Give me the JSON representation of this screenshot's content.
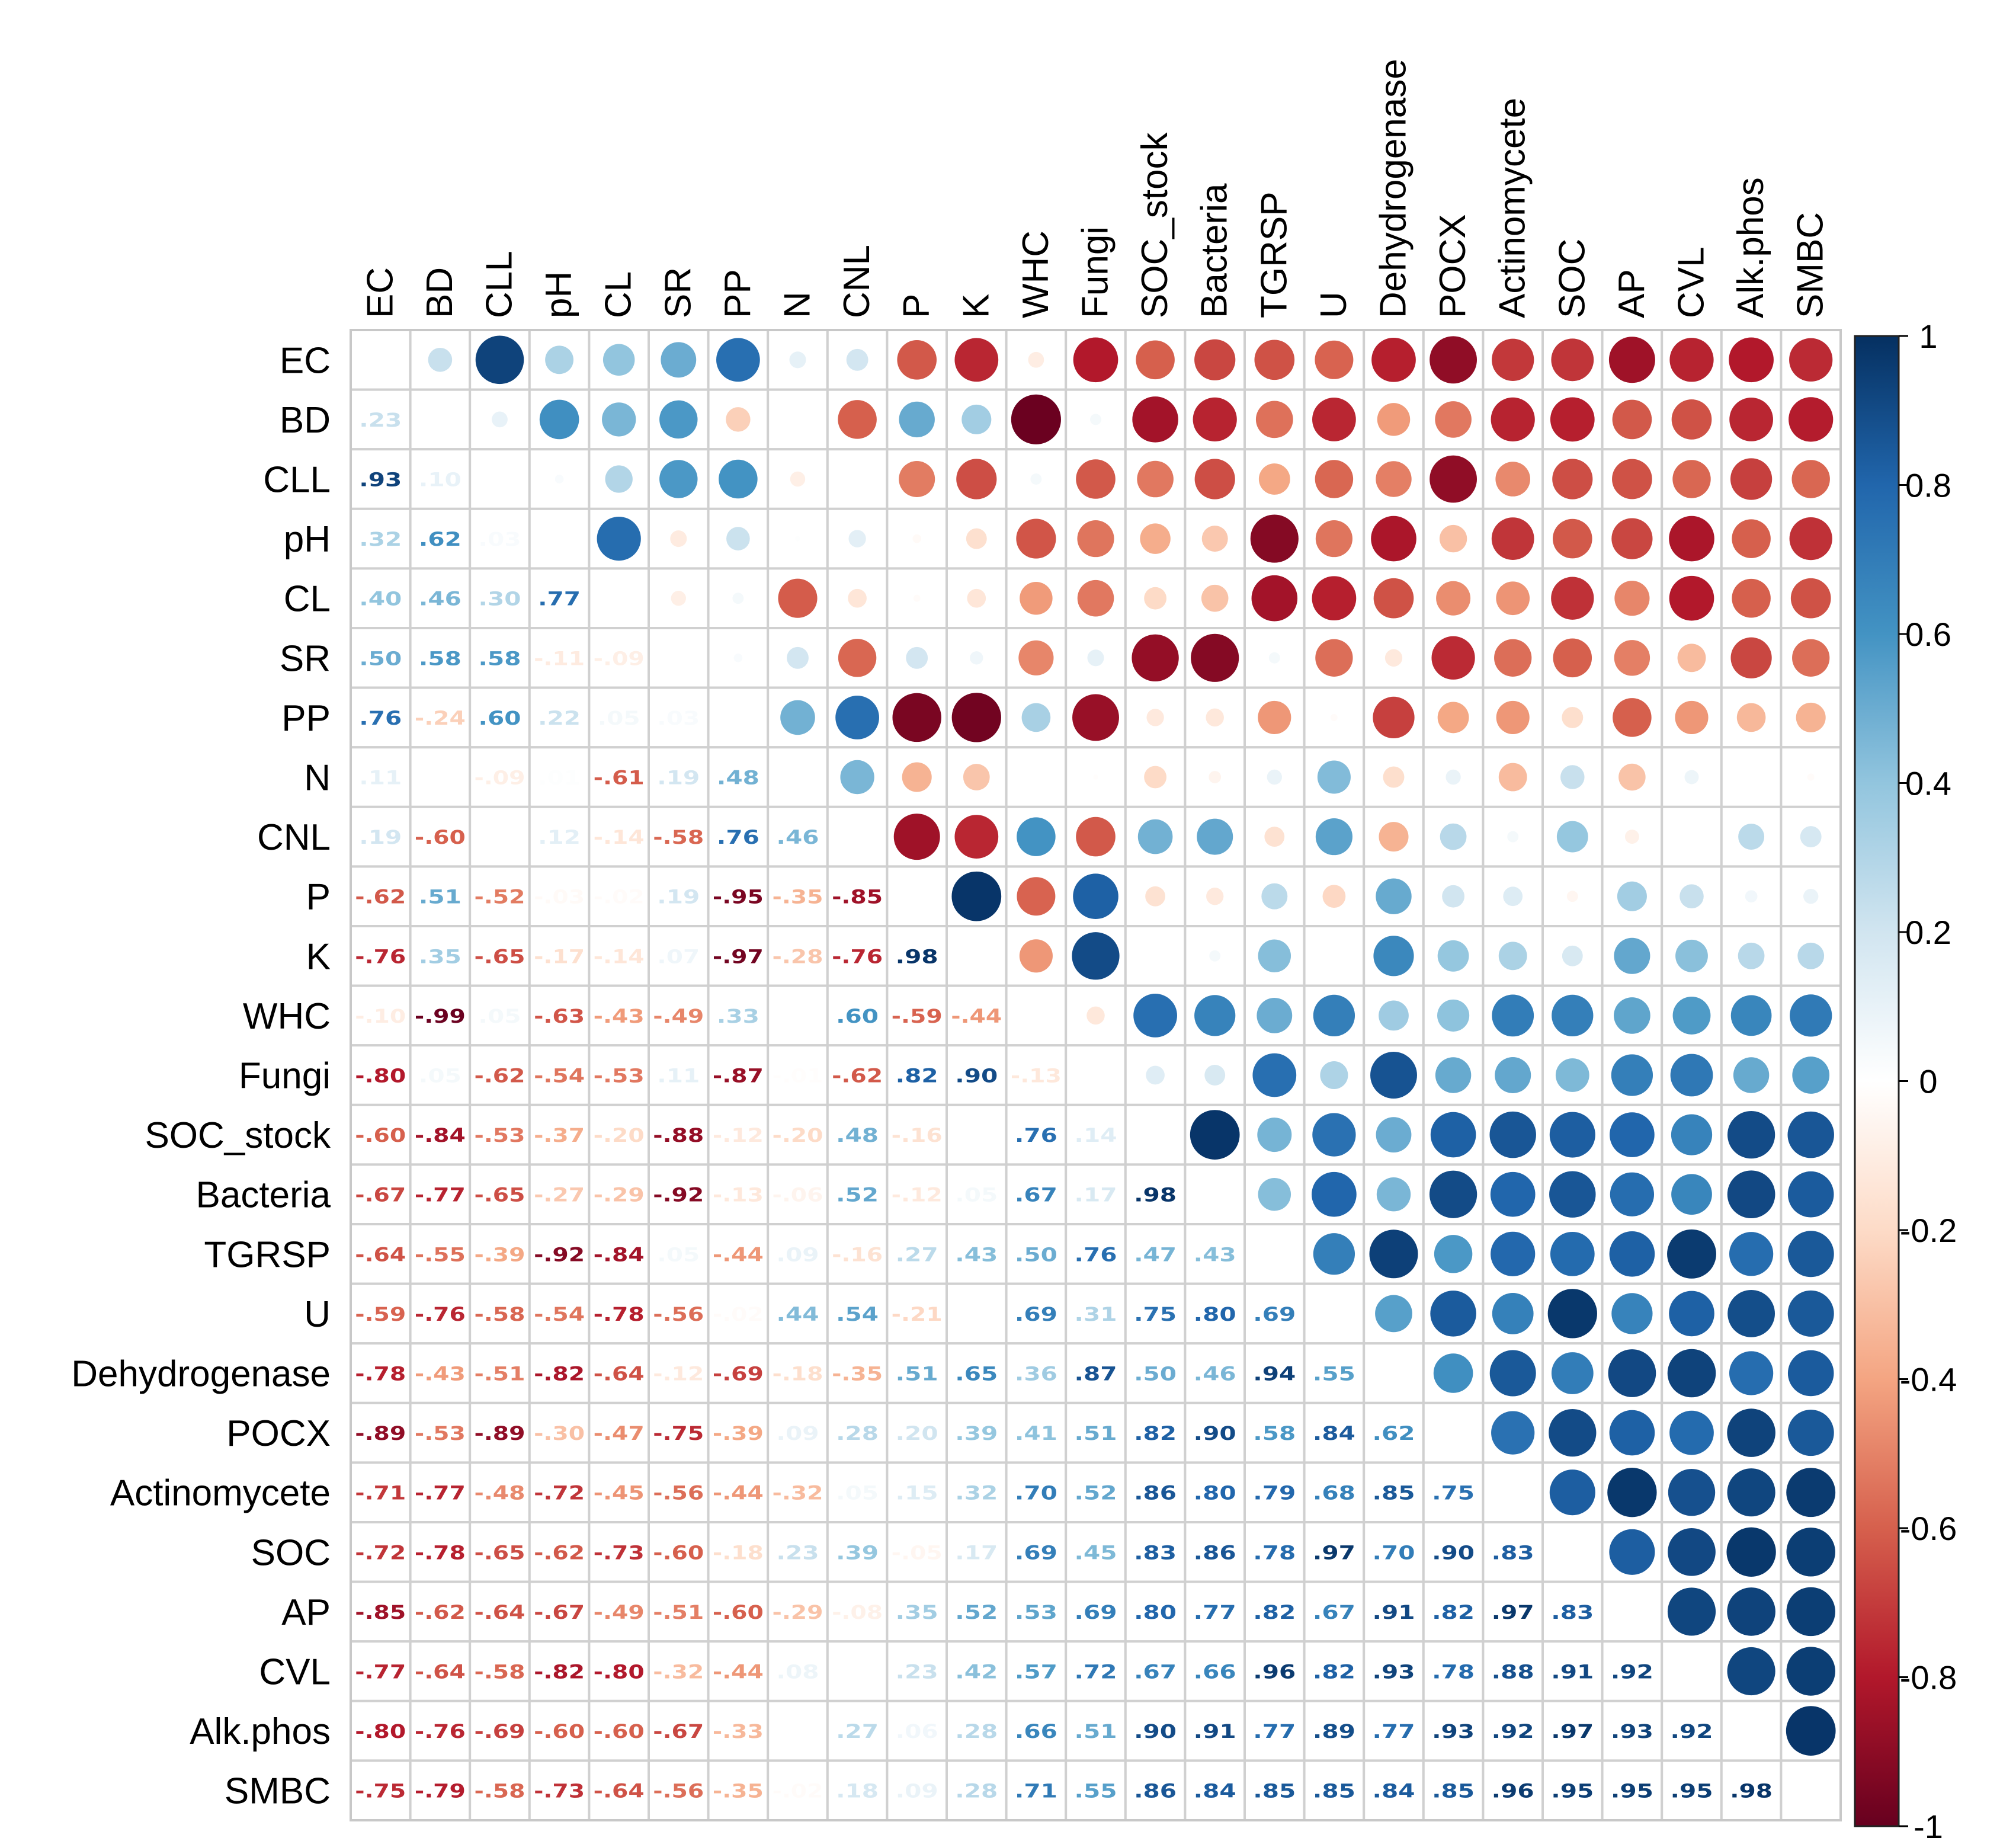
{
  "chart_data": {
    "type": "heatmap",
    "subtype": "correlation-matrix (upper: circles, lower: numbers)",
    "variables": [
      "EC",
      "BD",
      "CLL",
      "pH",
      "CL",
      "SR",
      "PP",
      "N",
      "CNL",
      "P",
      "K",
      "WHC",
      "Fungi",
      "SOC_stock",
      "Bacteria",
      "TGRSP",
      "U",
      "Dehydrogenase",
      "POCX",
      "Actinomycete",
      "SOC",
      "AP",
      "CVL",
      "Alk.phos",
      "SMBC"
    ],
    "lower_values": [
      [],
      [
        0.23
      ],
      [
        0.93,
        0.1
      ],
      [
        0.32,
        0.62,
        0.03
      ],
      [
        0.4,
        0.46,
        0.3,
        0.77
      ],
      [
        0.5,
        0.58,
        0.58,
        -0.11,
        -0.09
      ],
      [
        0.76,
        -0.24,
        0.6,
        0.22,
        0.05,
        0.03
      ],
      [
        0.11,
        0.0,
        -0.09,
        0.01,
        -0.61,
        0.19,
        0.48
      ],
      [
        0.19,
        -0.6,
        0.0,
        0.12,
        -0.14,
        -0.58,
        0.76,
        0.46
      ],
      [
        -0.62,
        0.51,
        -0.52,
        -0.03,
        -0.02,
        0.19,
        -0.95,
        -0.35,
        -0.85
      ],
      [
        -0.76,
        0.35,
        -0.65,
        -0.17,
        -0.14,
        0.07,
        -0.97,
        -0.28,
        -0.76,
        0.98
      ],
      [
        -0.1,
        -0.99,
        0.05,
        -0.63,
        -0.43,
        -0.49,
        0.33,
        0.0,
        0.6,
        -0.59,
        -0.44
      ],
      [
        -0.8,
        0.05,
        -0.62,
        -0.54,
        -0.53,
        0.11,
        -0.87,
        -0.01,
        -0.62,
        0.82,
        0.9,
        -0.13
      ],
      [
        -0.6,
        -0.84,
        -0.53,
        -0.37,
        -0.2,
        -0.88,
        -0.12,
        -0.2,
        0.48,
        -0.16,
        0.0,
        0.76,
        0.14
      ],
      [
        -0.67,
        -0.77,
        -0.65,
        -0.27,
        -0.29,
        -0.92,
        -0.13,
        -0.06,
        0.52,
        -0.12,
        0.05,
        0.67,
        0.17,
        0.98
      ],
      [
        -0.64,
        -0.55,
        -0.39,
        -0.92,
        -0.84,
        0.05,
        -0.44,
        0.09,
        -0.16,
        0.27,
        0.43,
        0.5,
        0.76,
        0.47,
        0.43
      ],
      [
        -0.59,
        -0.76,
        -0.58,
        -0.54,
        -0.78,
        -0.56,
        -0.02,
        0.44,
        0.54,
        -0.21,
        0.0,
        0.69,
        0.31,
        0.75,
        0.8,
        0.69
      ],
      [
        -0.78,
        -0.43,
        -0.51,
        -0.82,
        -0.64,
        -0.12,
        -0.69,
        -0.18,
        -0.35,
        0.51,
        0.65,
        0.36,
        0.87,
        0.5,
        0.46,
        0.94,
        0.55
      ],
      [
        -0.89,
        -0.53,
        -0.89,
        -0.3,
        -0.47,
        -0.75,
        -0.39,
        0.09,
        0.28,
        0.2,
        0.39,
        0.41,
        0.51,
        0.82,
        0.9,
        0.58,
        0.84,
        0.62
      ],
      [
        -0.71,
        -0.77,
        -0.48,
        -0.72,
        -0.45,
        -0.56,
        -0.44,
        -0.32,
        0.05,
        0.15,
        0.32,
        0.7,
        0.52,
        0.86,
        0.8,
        0.79,
        0.68,
        0.85,
        0.75
      ],
      [
        -0.72,
        -0.78,
        -0.65,
        -0.62,
        -0.73,
        -0.6,
        -0.18,
        0.23,
        0.39,
        -0.05,
        0.17,
        0.69,
        0.45,
        0.83,
        0.86,
        0.78,
        0.97,
        0.7,
        0.9,
        0.83
      ],
      [
        -0.85,
        -0.62,
        -0.64,
        -0.67,
        -0.49,
        -0.51,
        -0.6,
        -0.29,
        -0.08,
        0.35,
        0.52,
        0.53,
        0.69,
        0.8,
        0.77,
        0.82,
        0.67,
        0.91,
        0.82,
        0.97,
        0.83
      ],
      [
        -0.77,
        -0.64,
        -0.58,
        -0.82,
        -0.8,
        -0.32,
        -0.44,
        0.08,
        0.0,
        0.23,
        0.42,
        0.57,
        0.72,
        0.67,
        0.66,
        0.96,
        0.82,
        0.93,
        0.78,
        0.88,
        0.91,
        0.92
      ],
      [
        -0.8,
        -0.76,
        -0.69,
        -0.6,
        -0.6,
        -0.67,
        -0.33,
        0.0,
        0.27,
        0.06,
        0.28,
        0.66,
        0.51,
        0.9,
        0.91,
        0.77,
        0.89,
        0.77,
        0.93,
        0.92,
        0.97,
        0.93,
        0.92
      ],
      [
        -0.75,
        -0.79,
        -0.58,
        -0.73,
        -0.64,
        -0.56,
        -0.35,
        -0.02,
        0.18,
        0.09,
        0.28,
        0.71,
        0.55,
        0.86,
        0.84,
        0.85,
        0.85,
        0.84,
        0.85,
        0.96,
        0.95,
        0.95,
        0.95,
        0.98
      ]
    ],
    "value_range": [
      -1,
      1
    ],
    "colorbar": {
      "ticks": [
        "1",
        "0.8",
        "0.6",
        "0.4",
        "0.2",
        "0",
        "-0.2",
        "-0.4",
        "-0.6",
        "-0.8",
        "-1"
      ],
      "low_color": "#67001F",
      "mid_color": "#FFFFFF",
      "high_color": "#053061"
    },
    "legend_position": "right"
  }
}
